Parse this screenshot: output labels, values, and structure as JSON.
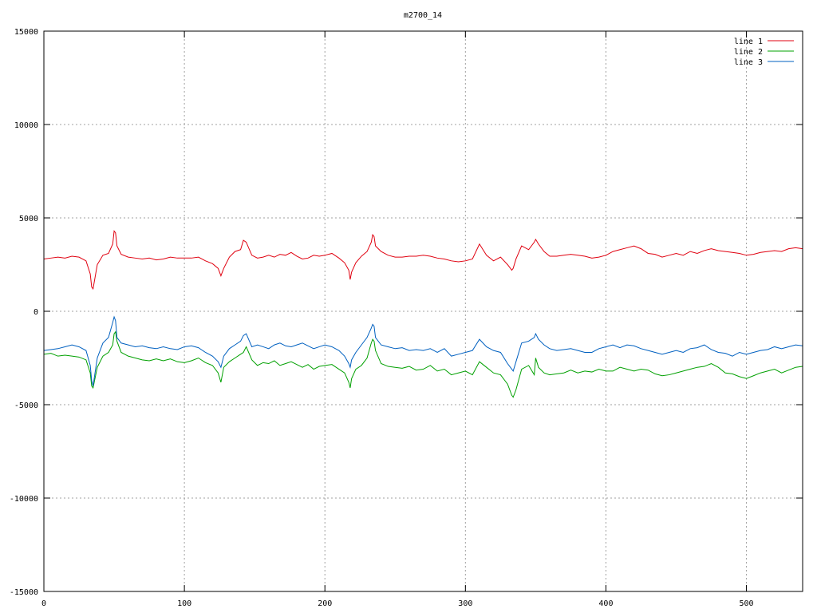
{
  "chart_data": {
    "type": "line",
    "title": "m2700_14",
    "xlabel": "",
    "ylabel": "",
    "xlim": [
      0,
      540
    ],
    "ylim": [
      -15000,
      15000
    ],
    "xticks": [
      0,
      100,
      200,
      300,
      400,
      500
    ],
    "yticks": [
      -15000,
      -10000,
      -5000,
      0,
      5000,
      10000,
      15000
    ],
    "grid": true,
    "legend_position": "top-right",
    "x": [
      0,
      5,
      10,
      15,
      20,
      25,
      30,
      33,
      34,
      35,
      38,
      42,
      46,
      49,
      50,
      51,
      52,
      55,
      60,
      65,
      70,
      75,
      80,
      85,
      90,
      95,
      100,
      105,
      110,
      115,
      120,
      124,
      126,
      128,
      132,
      136,
      140,
      142,
      144,
      148,
      152,
      156,
      160,
      164,
      168,
      172,
      176,
      180,
      184,
      188,
      192,
      196,
      200,
      205,
      210,
      214,
      217,
      218,
      219,
      222,
      226,
      230,
      233,
      234,
      235,
      236,
      240,
      245,
      250,
      255,
      260,
      265,
      270,
      275,
      280,
      285,
      290,
      295,
      300,
      305,
      310,
      315,
      320,
      325,
      330,
      333,
      334,
      336,
      340,
      345,
      349,
      350,
      352,
      356,
      360,
      365,
      370,
      375,
      380,
      385,
      390,
      395,
      400,
      405,
      410,
      415,
      420,
      425,
      430,
      435,
      440,
      445,
      450,
      455,
      460,
      465,
      470,
      475,
      480,
      485,
      490,
      495,
      500,
      505,
      510,
      515,
      520,
      525,
      530,
      535,
      540
    ],
    "series": [
      {
        "name": "line 1",
        "color": "#e0000f",
        "values": [
          2800,
          2850,
          2900,
          2850,
          2950,
          2900,
          2700,
          2000,
          1300,
          1200,
          2500,
          3000,
          3100,
          3600,
          4300,
          4200,
          3500,
          3050,
          2900,
          2850,
          2800,
          2850,
          2750,
          2800,
          2900,
          2850,
          2850,
          2850,
          2900,
          2700,
          2550,
          2300,
          1900,
          2300,
          2900,
          3200,
          3300,
          3800,
          3700,
          3000,
          2850,
          2900,
          3000,
          2900,
          3050,
          3000,
          3150,
          2950,
          2800,
          2850,
          3000,
          2950,
          3000,
          3100,
          2850,
          2600,
          2200,
          1700,
          2100,
          2600,
          2950,
          3200,
          3700,
          4100,
          4000,
          3500,
          3200,
          3000,
          2900,
          2900,
          2950,
          2950,
          3000,
          2950,
          2850,
          2800,
          2700,
          2650,
          2700,
          2800,
          3600,
          3000,
          2700,
          2900,
          2500,
          2200,
          2300,
          2800,
          3500,
          3300,
          3700,
          3850,
          3600,
          3200,
          2950,
          2950,
          3000,
          3050,
          3000,
          2950,
          2850,
          2900,
          3000,
          3200,
          3300,
          3400,
          3500,
          3350,
          3100,
          3050,
          2900,
          3000,
          3100,
          3000,
          3200,
          3100,
          3250,
          3350,
          3250,
          3200,
          3150,
          3100,
          3000,
          3050,
          3150,
          3200,
          3250,
          3200,
          3350,
          3400,
          3350
        ]
      },
      {
        "name": "line 2",
        "color": "#00a000",
        "values": [
          -2300,
          -2250,
          -2400,
          -2350,
          -2400,
          -2450,
          -2600,
          -3300,
          -4000,
          -4100,
          -3000,
          -2400,
          -2200,
          -1800,
          -1200,
          -1100,
          -1600,
          -2200,
          -2400,
          -2500,
          -2600,
          -2650,
          -2550,
          -2650,
          -2550,
          -2700,
          -2750,
          -2650,
          -2500,
          -2750,
          -2900,
          -3300,
          -3800,
          -3000,
          -2700,
          -2500,
          -2300,
          -2200,
          -1900,
          -2600,
          -2900,
          -2750,
          -2800,
          -2650,
          -2900,
          -2800,
          -2700,
          -2850,
          -3000,
          -2850,
          -3100,
          -2950,
          -2900,
          -2850,
          -3100,
          -3300,
          -3800,
          -4100,
          -3600,
          -3100,
          -2900,
          -2500,
          -1700,
          -1500,
          -1600,
          -2100,
          -2800,
          -2950,
          -3000,
          -3050,
          -2950,
          -3150,
          -3100,
          -2900,
          -3200,
          -3100,
          -3400,
          -3300,
          -3200,
          -3400,
          -2700,
          -3000,
          -3300,
          -3400,
          -3900,
          -4500,
          -4600,
          -4200,
          -3100,
          -2900,
          -3400,
          -2500,
          -3000,
          -3300,
          -3400,
          -3350,
          -3300,
          -3150,
          -3300,
          -3200,
          -3250,
          -3100,
          -3200,
          -3200,
          -3000,
          -3100,
          -3200,
          -3100,
          -3150,
          -3350,
          -3450,
          -3400,
          -3300,
          -3200,
          -3100,
          -3000,
          -2950,
          -2800,
          -3000,
          -3300,
          -3350,
          -3500,
          -3600,
          -3450,
          -3300,
          -3200,
          -3100,
          -3300,
          -3150,
          -3000,
          -2950
        ]
      },
      {
        "name": "line 3",
        "color": "#0060c0",
        "values": [
          -2100,
          -2050,
          -2000,
          -1900,
          -1800,
          -1900,
          -2100,
          -2900,
          -3700,
          -4000,
          -2500,
          -1700,
          -1400,
          -600,
          -300,
          -500,
          -1400,
          -1700,
          -1800,
          -1900,
          -1850,
          -1950,
          -2000,
          -1900,
          -2000,
          -2050,
          -1900,
          -1850,
          -1950,
          -2200,
          -2400,
          -2700,
          -3000,
          -2400,
          -2000,
          -1800,
          -1600,
          -1300,
          -1200,
          -1900,
          -1800,
          -1900,
          -2000,
          -1800,
          -1700,
          -1850,
          -1900,
          -1800,
          -1700,
          -1850,
          -2000,
          -1900,
          -1800,
          -1900,
          -2100,
          -2400,
          -2800,
          -3000,
          -2600,
          -2200,
          -1800,
          -1400,
          -900,
          -700,
          -800,
          -1400,
          -1800,
          -1900,
          -2000,
          -1950,
          -2100,
          -2050,
          -2100,
          -2000,
          -2200,
          -2000,
          -2400,
          -2300,
          -2200,
          -2100,
          -1500,
          -1900,
          -2100,
          -2200,
          -2800,
          -3100,
          -3200,
          -2700,
          -1700,
          -1600,
          -1400,
          -1200,
          -1500,
          -1800,
          -2000,
          -2100,
          -2050,
          -2000,
          -2100,
          -2200,
          -2200,
          -2000,
          -1900,
          -1800,
          -1950,
          -1800,
          -1850,
          -2000,
          -2100,
          -2200,
          -2300,
          -2200,
          -2100,
          -2200,
          -2000,
          -1950,
          -1800,
          -2050,
          -2200,
          -2250,
          -2400,
          -2200,
          -2300,
          -2200,
          -2100,
          -2050,
          -1900,
          -2000,
          -1900,
          -1800,
          -1850
        ]
      }
    ]
  }
}
